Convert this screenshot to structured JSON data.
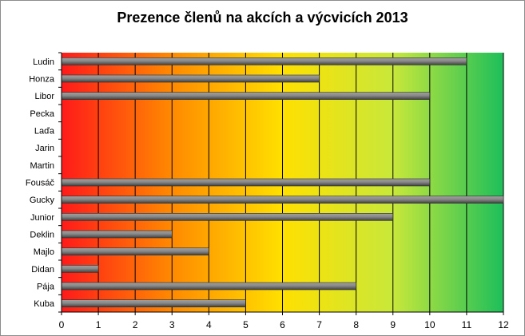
{
  "chart_data": {
    "type": "bar",
    "orientation": "horizontal",
    "title": "Prezence členů na akcích a výcvicích 2013",
    "xlabel": "",
    "ylabel": "",
    "categories": [
      "Ludin",
      "Honza",
      "Libor",
      "Pecka",
      "Laďa",
      "Jarin",
      "Martin",
      "Fousáč",
      "Gucky",
      "Junior",
      "Deklin",
      "Majlo",
      "Didan",
      "Pája",
      "Kuba"
    ],
    "values": [
      11,
      7,
      10,
      0,
      0,
      0,
      0,
      10,
      12,
      9,
      3,
      4,
      1,
      8,
      5
    ],
    "xlim": [
      0,
      12
    ],
    "xticks": [
      "0",
      "1",
      "2",
      "3",
      "4",
      "5",
      "6",
      "7",
      "8",
      "9",
      "10",
      "11",
      "12"
    ],
    "grid": true,
    "legend": "none",
    "colors": {
      "background_gradient": [
        "#ff1a1a",
        "#ff8a00",
        "#ffe000",
        "#c8e83a",
        "#1dbf5a"
      ],
      "bar_light": "#a0a0a0",
      "bar_dark": "#404040",
      "grid": "#000000"
    }
  }
}
